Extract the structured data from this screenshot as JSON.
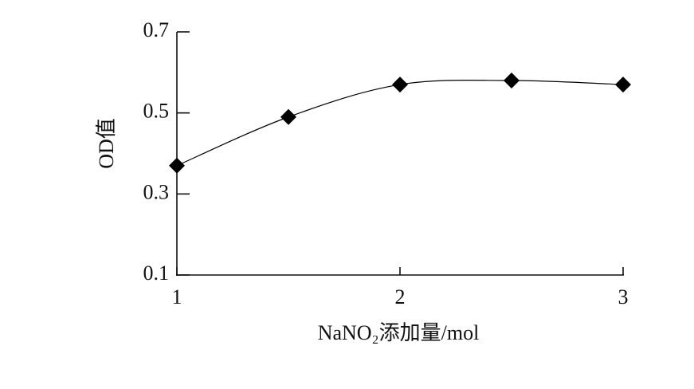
{
  "chart_data": {
    "type": "line",
    "x_label": "NaNO₂添加量/mol",
    "y_label": "OD值",
    "x": [
      1,
      1.5,
      2,
      2.5,
      3
    ],
    "series": [
      {
        "color": "#000000",
        "values": [
          0.37,
          0.49,
          0.57,
          0.58,
          0.57
        ]
      }
    ],
    "xlim": [
      1,
      3
    ],
    "xticks": [
      1,
      2,
      3
    ],
    "ylim": [
      0.1,
      0.7
    ],
    "yticks": [
      0.1,
      0.3,
      0.5,
      0.7
    ],
    "marker": "diamond",
    "smooth": true
  }
}
